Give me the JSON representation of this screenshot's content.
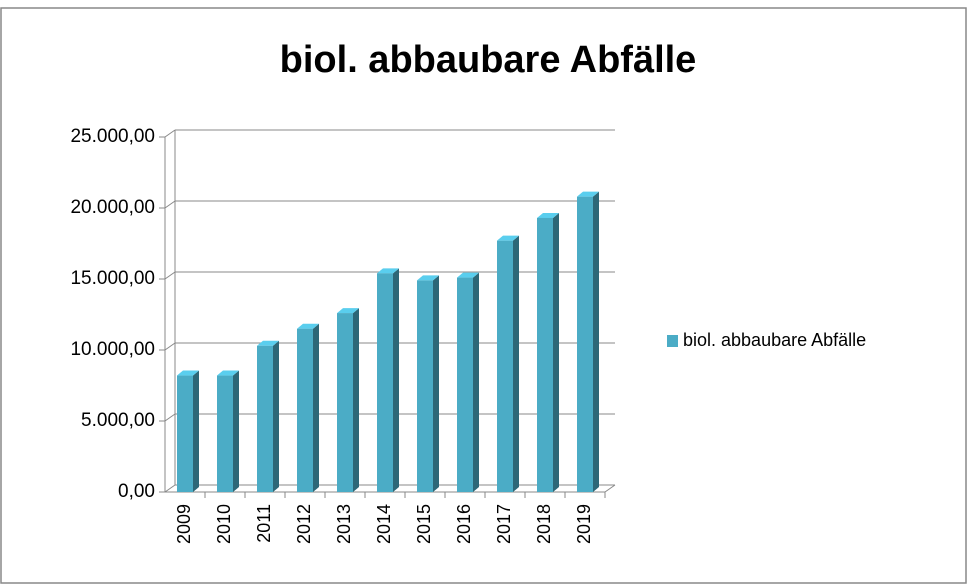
{
  "chart_data": {
    "type": "bar",
    "title": "biol. abbaubare Abfälle",
    "categories": [
      "2009",
      "2010",
      "2011",
      "2012",
      "2013",
      "2014",
      "2015",
      "2016",
      "2017",
      "2018",
      "2019"
    ],
    "series": [
      {
        "name": "biol. abbaubare Abfälle",
        "color": "#4bacc6",
        "values": [
          8200,
          8200,
          10300,
          11500,
          12600,
          15400,
          14900,
          15100,
          17700,
          19300,
          20800
        ]
      }
    ],
    "ylim": [
      0,
      25000
    ],
    "yticks": [
      {
        "value": 0,
        "label": "0,00"
      },
      {
        "value": 5000,
        "label": "5.000,00"
      },
      {
        "value": 10000,
        "label": "10.000,00"
      },
      {
        "value": 15000,
        "label": "15.000,00"
      },
      {
        "value": 20000,
        "label": "20.000,00"
      },
      {
        "value": 25000,
        "label": "25.000,00"
      }
    ],
    "grid": true,
    "legend": "right"
  }
}
